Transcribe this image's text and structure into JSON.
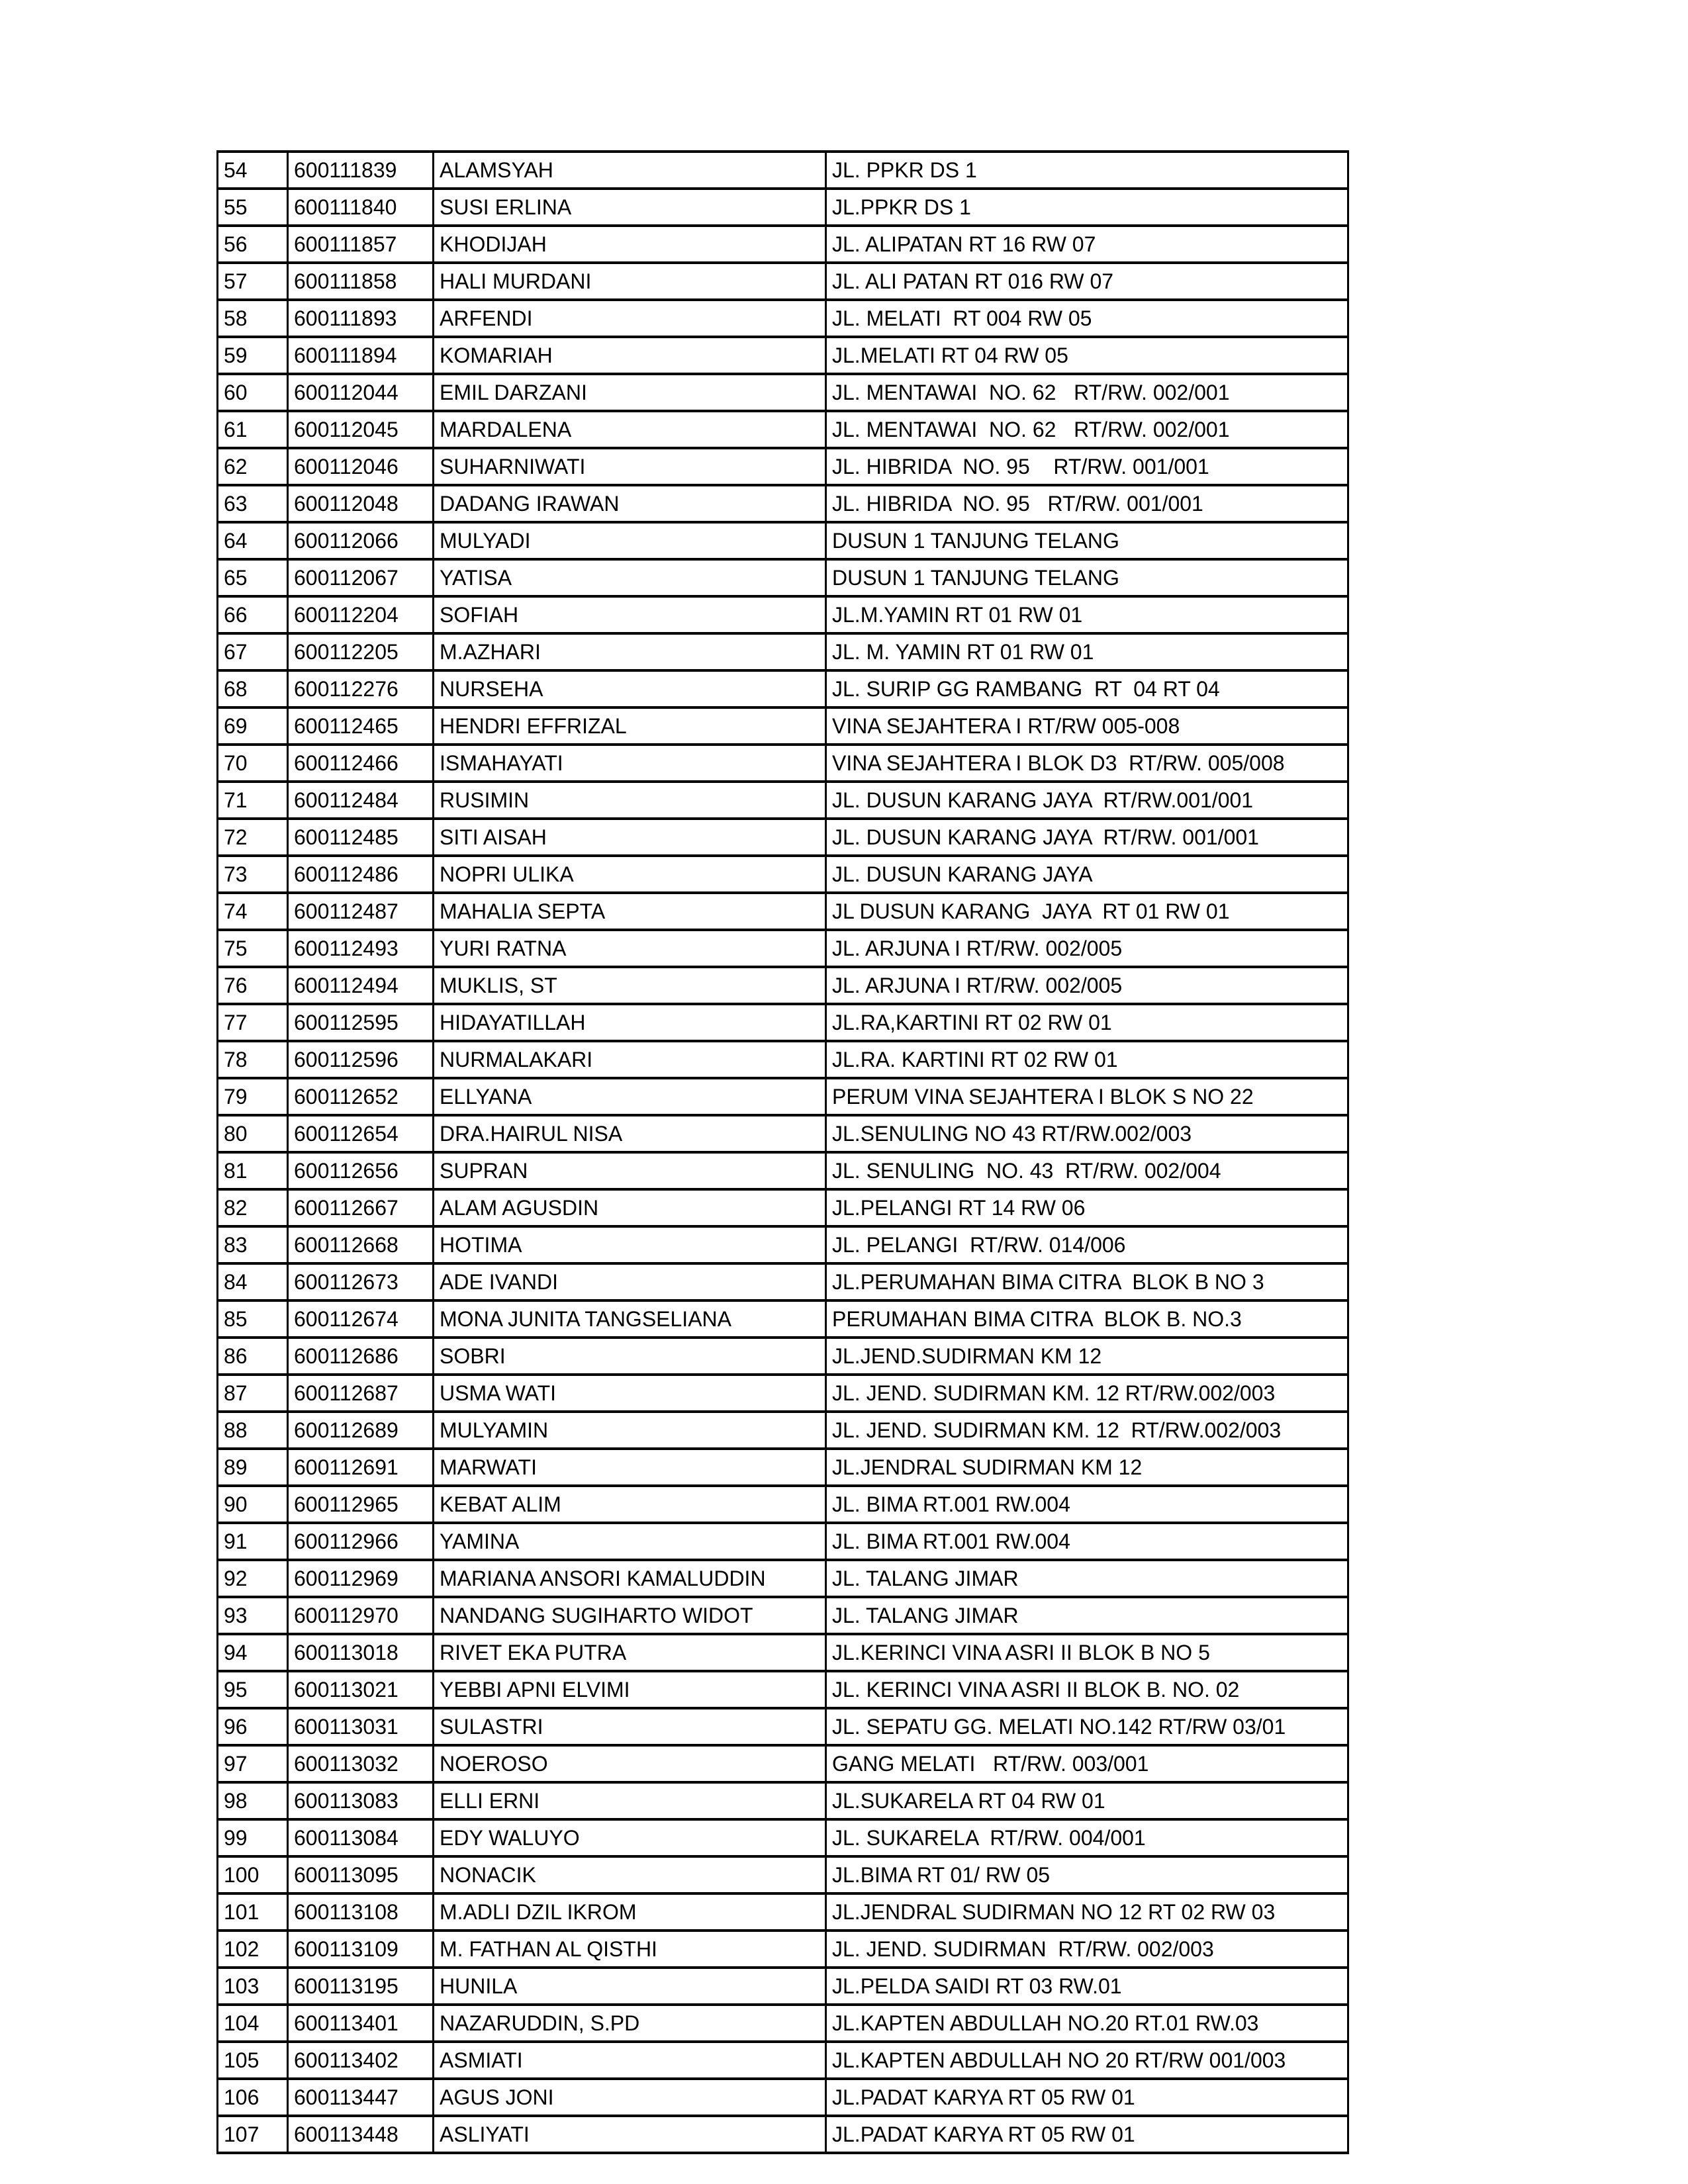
{
  "table": {
    "column_keys": [
      "no",
      "id",
      "name",
      "address"
    ],
    "rows": [
      {
        "no": "54",
        "id": "600111839",
        "name": "ALAMSYAH",
        "address": "JL. PPKR DS 1"
      },
      {
        "no": "55",
        "id": "600111840",
        "name": "SUSI ERLINA",
        "address": "JL.PPKR DS 1"
      },
      {
        "no": "56",
        "id": "600111857",
        "name": "KHODIJAH",
        "address": "JL. ALIPATAN RT 16 RW 07"
      },
      {
        "no": "57",
        "id": "600111858",
        "name": "HALI MURDANI",
        "address": "JL. ALI PATAN RT 016 RW 07"
      },
      {
        "no": "58",
        "id": "600111893",
        "name": "ARFENDI",
        "address": "JL. MELATI  RT 004 RW 05"
      },
      {
        "no": "59",
        "id": "600111894",
        "name": "KOMARIAH",
        "address": "JL.MELATI RT 04 RW 05"
      },
      {
        "no": "60",
        "id": "600112044",
        "name": "EMIL DARZANI",
        "address": "JL. MENTAWAI  NO. 62   RT/RW. 002/001"
      },
      {
        "no": "61",
        "id": "600112045",
        "name": "MARDALENA",
        "address": "JL. MENTAWAI  NO. 62   RT/RW. 002/001"
      },
      {
        "no": "62",
        "id": "600112046",
        "name": "SUHARNIWATI",
        "address": "JL. HIBRIDA  NO. 95    RT/RW. 001/001"
      },
      {
        "no": "63",
        "id": "600112048",
        "name": "DADANG IRAWAN",
        "address": "JL. HIBRIDA  NO. 95   RT/RW. 001/001"
      },
      {
        "no": "64",
        "id": "600112066",
        "name": "MULYADI",
        "address": "DUSUN 1 TANJUNG TELANG"
      },
      {
        "no": "65",
        "id": "600112067",
        "name": "YATISA",
        "address": "DUSUN 1 TANJUNG TELANG"
      },
      {
        "no": "66",
        "id": "600112204",
        "name": "SOFIAH",
        "address": "JL.M.YAMIN RT 01 RW 01"
      },
      {
        "no": "67",
        "id": "600112205",
        "name": "M.AZHARI",
        "address": "JL. M. YAMIN RT 01 RW 01"
      },
      {
        "no": "68",
        "id": "600112276",
        "name": "NURSEHA",
        "address": "JL. SURIP GG RAMBANG  RT  04 RT 04"
      },
      {
        "no": "69",
        "id": "600112465",
        "name": "HENDRI EFFRIZAL",
        "address": "VINA SEJAHTERA I RT/RW 005-008"
      },
      {
        "no": "70",
        "id": "600112466",
        "name": "ISMAHAYATI",
        "address": "VINA SEJAHTERA I BLOK D3  RT/RW. 005/008"
      },
      {
        "no": "71",
        "id": "600112484",
        "name": "RUSIMIN",
        "address": "JL. DUSUN KARANG JAYA  RT/RW.001/001"
      },
      {
        "no": "72",
        "id": "600112485",
        "name": "SITI AISAH",
        "address": "JL. DUSUN KARANG JAYA  RT/RW. 001/001"
      },
      {
        "no": "73",
        "id": "600112486",
        "name": "NOPRI ULIKA",
        "address": "JL. DUSUN KARANG JAYA"
      },
      {
        "no": "74",
        "id": "600112487",
        "name": "MAHALIA SEPTA",
        "address": "JL DUSUN KARANG  JAYA  RT 01 RW 01"
      },
      {
        "no": "75",
        "id": "600112493",
        "name": "YURI RATNA",
        "address": "JL. ARJUNA I RT/RW. 002/005"
      },
      {
        "no": "76",
        "id": "600112494",
        "name": "MUKLIS, ST",
        "address": "JL. ARJUNA I RT/RW. 002/005"
      },
      {
        "no": "77",
        "id": "600112595",
        "name": "HIDAYATILLAH",
        "address": "JL.RA,KARTINI RT 02 RW 01"
      },
      {
        "no": "78",
        "id": "600112596",
        "name": "NURMALAKARI",
        "address": "JL.RA. KARTINI RT 02 RW 01"
      },
      {
        "no": "79",
        "id": "600112652",
        "name": "ELLYANA",
        "address": "PERUM VINA SEJAHTERA I BLOK S NO 22"
      },
      {
        "no": "80",
        "id": "600112654",
        "name": "DRA.HAIRUL NISA",
        "address": "JL.SENULING NO 43 RT/RW.002/003"
      },
      {
        "no": "81",
        "id": "600112656",
        "name": "SUPRAN",
        "address": "JL. SENULING  NO. 43  RT/RW. 002/004"
      },
      {
        "no": "82",
        "id": "600112667",
        "name": "ALAM AGUSDIN",
        "address": "JL.PELANGI RT 14 RW 06"
      },
      {
        "no": "83",
        "id": "600112668",
        "name": "HOTIMA",
        "address": "JL. PELANGI  RT/RW. 014/006"
      },
      {
        "no": "84",
        "id": "600112673",
        "name": "ADE IVANDI",
        "address": "JL.PERUMAHAN BIMA CITRA  BLOK B NO 3"
      },
      {
        "no": "85",
        "id": "600112674",
        "name": "MONA JUNITA TANGSELIANA",
        "address": "PERUMAHAN BIMA CITRA  BLOK B. NO.3"
      },
      {
        "no": "86",
        "id": "600112686",
        "name": "SOBRI",
        "address": "JL.JEND.SUDIRMAN KM 12"
      },
      {
        "no": "87",
        "id": "600112687",
        "name": "USMA WATI",
        "address": "JL. JEND. SUDIRMAN KM. 12 RT/RW.002/003"
      },
      {
        "no": "88",
        "id": "600112689",
        "name": "MULYAMIN",
        "address": "JL. JEND. SUDIRMAN KM. 12  RT/RW.002/003"
      },
      {
        "no": "89",
        "id": "600112691",
        "name": "MARWATI",
        "address": "JL.JENDRAL SUDIRMAN KM 12"
      },
      {
        "no": "90",
        "id": "600112965",
        "name": "KEBAT ALIM",
        "address": "JL. BIMA RT.001 RW.004"
      },
      {
        "no": "91",
        "id": "600112966",
        "name": "YAMINA",
        "address": "JL. BIMA RT.001 RW.004"
      },
      {
        "no": "92",
        "id": "600112969",
        "name": "MARIANA ANSORI KAMALUDDIN",
        "address": "JL. TALANG JIMAR"
      },
      {
        "no": "93",
        "id": "600112970",
        "name": "NANDANG SUGIHARTO WIDOT",
        "address": "JL. TALANG JIMAR"
      },
      {
        "no": "94",
        "id": "600113018",
        "name": "RIVET EKA PUTRA",
        "address": "JL.KERINCI VINA ASRI II BLOK B NO 5"
      },
      {
        "no": "95",
        "id": "600113021",
        "name": "YEBBI APNI ELVIMI",
        "address": "JL. KERINCI VINA ASRI II BLOK B. NO. 02"
      },
      {
        "no": "96",
        "id": "600113031",
        "name": "SULASTRI",
        "address": "JL. SEPATU GG. MELATI NO.142 RT/RW 03/01"
      },
      {
        "no": "97",
        "id": "600113032",
        "name": "NOEROSO",
        "address": "GANG MELATI   RT/RW. 003/001"
      },
      {
        "no": "98",
        "id": "600113083",
        "name": "ELLI ERNI",
        "address": "JL.SUKARELA RT 04 RW 01"
      },
      {
        "no": "99",
        "id": "600113084",
        "name": "EDY WALUYO",
        "address": "JL. SUKARELA  RT/RW. 004/001"
      },
      {
        "no": "100",
        "id": "600113095",
        "name": "NONACIK",
        "address": "JL.BIMA RT 01/ RW 05"
      },
      {
        "no": "101",
        "id": "600113108",
        "name": "M.ADLI DZIL IKROM",
        "address": "JL.JENDRAL SUDIRMAN NO 12 RT 02 RW 03"
      },
      {
        "no": "102",
        "id": "600113109",
        "name": "M. FATHAN AL QISTHI",
        "address": "JL. JEND. SUDIRMAN  RT/RW. 002/003"
      },
      {
        "no": "103",
        "id": "600113195",
        "name": "HUNILA",
        "address": "JL.PELDA SAIDI RT 03 RW.01"
      },
      {
        "no": "104",
        "id": "600113401",
        "name": "NAZARUDDIN, S.PD",
        "address": "JL.KAPTEN ABDULLAH NO.20 RT.01 RW.03"
      },
      {
        "no": "105",
        "id": "600113402",
        "name": "ASMIATI",
        "address": "JL.KAPTEN ABDULLAH NO 20 RT/RW 001/003"
      },
      {
        "no": "106",
        "id": "600113447",
        "name": "AGUS JONI",
        "address": "JL.PADAT KARYA RT 05 RW 01"
      },
      {
        "no": "107",
        "id": "600113448",
        "name": "ASLIYATI",
        "address": "JL.PADAT KARYA RT 05 RW 01"
      }
    ]
  }
}
